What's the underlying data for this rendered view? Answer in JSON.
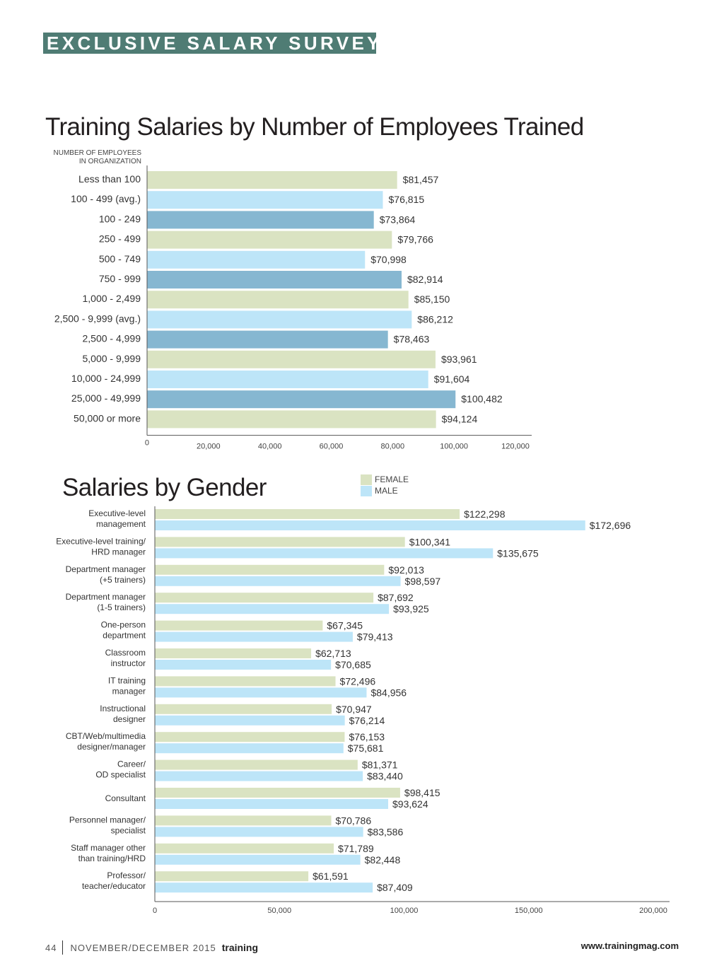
{
  "header": {
    "banner": "EXCLUSIVE SALARY SURVEY"
  },
  "colors": {
    "banner_bg": "#4f7c74",
    "green": "#dae3c2",
    "light_blue": "#bde5f8",
    "dark_blue": "#86b7d1"
  },
  "chart_data": [
    {
      "type": "bar",
      "orientation": "horizontal",
      "title": "Training Salaries by Number of Employees Trained",
      "ylabel": "NUMBER OF EMPLOYEES IN ORGANIZATION",
      "ylabel_lines": [
        "NUMBER OF EMPLOYEES",
        "IN ORGANIZATION"
      ],
      "xlabel": "",
      "xlim": [
        0,
        125000
      ],
      "xticks": [
        0,
        20000,
        40000,
        60000,
        80000,
        100000,
        120000
      ],
      "xtick_labels": [
        "0",
        "20,000",
        "40,000",
        "60,000",
        "80,000",
        "100,000",
        "120,000"
      ],
      "grid": false,
      "categories": [
        "Less than 100",
        "100 - 499 (avg.)",
        "100 - 249",
        "250 - 499",
        "500 - 749",
        "750 - 999",
        "1,000 - 2,499",
        "2,500 - 9,999 (avg.)",
        "2,500 - 4,999",
        "5,000 - 9,999",
        "10,000 - 24,999",
        "25,000 - 49,999",
        "50,000 or more"
      ],
      "values": [
        81457,
        76815,
        73864,
        79766,
        70998,
        82914,
        85150,
        86212,
        78463,
        93961,
        91604,
        100482,
        94124
      ],
      "value_labels": [
        "$81,457",
        "$76,815",
        "$73,864",
        "$79,766",
        "$70,998",
        "$82,914",
        "$85,150",
        "$86,212",
        "$78,463",
        "$93,961",
        "$91,604",
        "$100,482",
        "$94,124"
      ],
      "bar_colors": [
        "green",
        "light_blue",
        "dark_blue",
        "green",
        "light_blue",
        "dark_blue",
        "green",
        "light_blue",
        "dark_blue",
        "green",
        "light_blue",
        "dark_blue",
        "green"
      ]
    },
    {
      "type": "bar",
      "orientation": "horizontal",
      "title": "Salaries by Gender",
      "xlabel": "",
      "ylabel": "",
      "xlim": [
        0,
        200000
      ],
      "xticks": [
        0,
        50000,
        100000,
        150000,
        200000
      ],
      "xtick_labels": [
        "0",
        "50,000",
        "100,000",
        "150,000",
        "200,000"
      ],
      "grid": false,
      "legend_position": "top-right",
      "categories": [
        [
          "Executive-level",
          "management"
        ],
        [
          "Executive-level training/",
          "HRD manager"
        ],
        [
          "Department manager",
          "(+5 trainers)"
        ],
        [
          "Department manager",
          "(1-5 trainers)"
        ],
        [
          "One-person",
          "department"
        ],
        [
          "Classroom",
          "instructor"
        ],
        [
          "IT training",
          "manager"
        ],
        [
          "Instructional",
          "designer"
        ],
        [
          "CBT/Web/multimedia",
          "designer/manager"
        ],
        [
          "Career/",
          "OD specialist"
        ],
        [
          "Consultant"
        ],
        [
          "Personnel manager/",
          "specialist"
        ],
        [
          "Staff manager other",
          "than training/HRD"
        ],
        [
          "Professor/",
          "teacher/educator"
        ]
      ],
      "series": [
        {
          "name": "FEMALE",
          "color": "green",
          "values": [
            122298,
            100341,
            92013,
            87692,
            67345,
            62713,
            72496,
            70947,
            76153,
            81371,
            98415,
            70786,
            71789,
            61591
          ],
          "value_labels": [
            "$122,298",
            "$100,341",
            "$92,013",
            "$87,692",
            "$67,345",
            "$62,713",
            "$72,496",
            "$70,947",
            "$76,153",
            "$81,371",
            "$98,415",
            "$70,786",
            "$71,789",
            "$61,591"
          ]
        },
        {
          "name": "MALE",
          "color": "light_blue",
          "values": [
            172696,
            135675,
            98597,
            93925,
            79413,
            70685,
            84956,
            76214,
            75681,
            83440,
            93624,
            83586,
            82448,
            87409
          ],
          "value_labels": [
            "$172,696",
            "$135,675",
            "$98,597",
            "$93,925",
            "$79,413",
            "$70,685",
            "$84,956",
            "$76,214",
            "$75,681",
            "$83,440",
            "$93,624",
            "$83,586",
            "$82,448",
            "$87,409"
          ]
        }
      ]
    }
  ],
  "footer": {
    "page_number": "44",
    "issue": "NOVEMBER/DECEMBER 2015",
    "brand": "training",
    "url": "www.trainingmag.com"
  }
}
